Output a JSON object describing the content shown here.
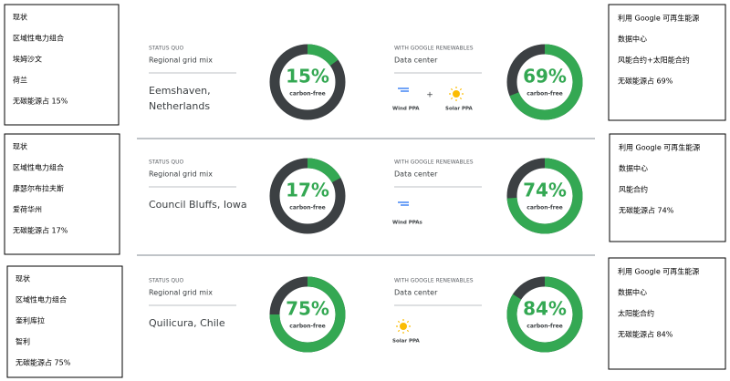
{
  "rows": [
    {
      "left_note": [
        "现状",
        "区域性电力组合",
        "埃姆沙文",
        "荷兰",
        "无碳能源占 15%"
      ],
      "status_quo": {
        "label": "STATUS QUO",
        "sublabel": "Regional grid mix",
        "location": [
          "Eemshaven,",
          "Netherlands"
        ],
        "value": 15,
        "value_label": "15%",
        "caption": "carbon-free"
      },
      "google": {
        "label": "WITH GOOGLE RENEWABLES",
        "sublabel": "Data center",
        "sources": [
          "Wind PPA",
          "Solar PPA"
        ],
        "connector": "+",
        "value": 69,
        "value_label": "69%",
        "caption": "carbon-free"
      },
      "right_note": [
        "利用 Google 可再生能源",
        "数据中心",
        "风能合约+太阳能合约",
        "无碳能源占 69%"
      ]
    },
    {
      "left_note": [
        "现状",
        "区域性电力组合",
        "康瑟尔布拉夫斯",
        "爱荷华州",
        "无碳能源占 17%"
      ],
      "status_quo": {
        "label": "STATUS QUO",
        "sublabel": "Regional grid mix",
        "location": [
          "Council Bluffs, Iowa"
        ],
        "value": 17,
        "value_label": "17%",
        "caption": "carbon-free"
      },
      "google": {
        "label": "WITH GOOGLE RENEWABLES",
        "sublabel": "Data center",
        "sources": [
          "Wind PPAs"
        ],
        "value": 74,
        "value_label": "74%",
        "caption": "carbon-free"
      },
      "right_note": [
        "利用 Google 可再生能源",
        "数据中心",
        "风能合约",
        "无碳能源占 74%"
      ]
    },
    {
      "left_note": [
        "现状",
        "区域性电力组合",
        "奎利库拉",
        "智利",
        "无碳能源占 75%"
      ],
      "status_quo": {
        "label": "STATUS QUO",
        "sublabel": "Regional grid mix",
        "location": [
          "Quilicura, Chile"
        ],
        "value": 75,
        "value_label": "75%",
        "caption": "carbon-free"
      },
      "google": {
        "label": "WITH GOOGLE RENEWABLES",
        "sublabel": "Data center",
        "sources": [
          "Solar PPA"
        ],
        "value": 84,
        "value_label": "84%",
        "caption": "carbon-free"
      },
      "right_note": [
        "利用 Google 可再生能源",
        "数据中心",
        "太阳能合约",
        "无碳能源占 84%"
      ]
    }
  ]
}
